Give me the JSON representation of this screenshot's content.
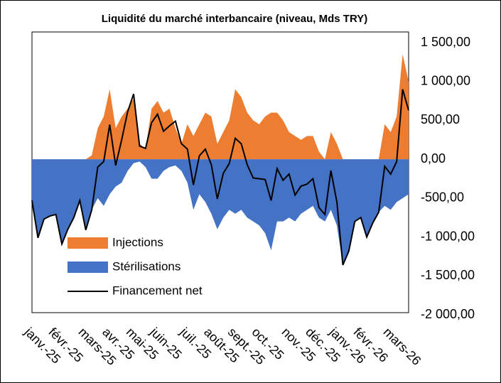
{
  "chart_data": {
    "type": "area",
    "title": "Liquidité du marché interbancaire (niveau, Mds TRY)",
    "categories": [
      "janv.-25",
      null,
      null,
      null,
      "févr.-25",
      null,
      null,
      null,
      null,
      "mars-25",
      null,
      null,
      null,
      "avr.-25",
      null,
      null,
      null,
      "mai-25",
      null,
      null,
      null,
      "juin-25",
      null,
      null,
      null,
      null,
      "juil.-25",
      null,
      null,
      null,
      "août-25",
      null,
      null,
      null,
      "sept.-25",
      null,
      null,
      null,
      "oct.-25",
      null,
      null,
      null,
      null,
      "nov.-25",
      null,
      null,
      null,
      "déc.-25",
      null,
      null,
      null,
      "janv.-26",
      null,
      null,
      null,
      "févr.-26",
      null,
      null,
      null,
      null,
      "mars-26",
      null,
      null,
      null
    ],
    "series": [
      {
        "name": "Injections",
        "type": "area",
        "color": "#ed7d31",
        "values": [
          0,
          0,
          0,
          0,
          0,
          0,
          0,
          0,
          0,
          0,
          50,
          400,
          550,
          900,
          400,
          550,
          650,
          780,
          200,
          130,
          650,
          750,
          600,
          650,
          400,
          200,
          450,
          300,
          450,
          600,
          550,
          200,
          350,
          500,
          900,
          800,
          600,
          500,
          450,
          550,
          600,
          600,
          500,
          350,
          300,
          250,
          300,
          300,
          100,
          0,
          350,
          200,
          0,
          0,
          0,
          0,
          0,
          0,
          0,
          450,
          350,
          550,
          1350,
          1000
        ]
      },
      {
        "name": "Stérilisations",
        "type": "area",
        "color": "#4472c4",
        "values": [
          -530,
          -1010,
          -770,
          -730,
          -710,
          -1090,
          -900,
          -750,
          -530,
          -910,
          -650,
          -500,
          -600,
          -450,
          -350,
          -300,
          -150,
          -50,
          -30,
          -100,
          -250,
          -250,
          -150,
          -100,
          -80,
          -150,
          -300,
          -650,
          -450,
          -550,
          -700,
          -900,
          -750,
          -650,
          -700,
          -650,
          -750,
          -800,
          -850,
          -950,
          -1170,
          -800,
          -800,
          -750,
          -800,
          -700,
          -650,
          -600,
          -750,
          -800,
          -650,
          -850,
          -1360,
          -1200,
          -800,
          -750,
          -1000,
          -820,
          -680,
          -600,
          -650,
          -550,
          -500,
          -450
        ]
      },
      {
        "name": "Financement net",
        "type": "line",
        "color": "#000000",
        "values": [
          -530,
          -1010,
          -770,
          -730,
          -710,
          -1090,
          -900,
          -750,
          -530,
          -910,
          -650,
          -100,
          -30,
          445,
          -80,
          250,
          610,
          840,
          170,
          140,
          470,
          580,
          360,
          430,
          490,
          200,
          130,
          -330,
          45,
          130,
          -70,
          -510,
          -180,
          -55,
          270,
          200,
          -70,
          -240,
          -250,
          -260,
          -530,
          -120,
          -270,
          -190,
          -460,
          -345,
          -320,
          -250,
          -620,
          -710,
          -145,
          -550,
          -1360,
          -1180,
          -800,
          -750,
          -1000,
          -820,
          -680,
          -90,
          -190,
          -30,
          900,
          630
        ]
      }
    ],
    "ylim": [
      -2000,
      1500
    ],
    "yticks": [
      {
        "value": -2000,
        "label": "-2 000,00"
      },
      {
        "value": -1500,
        "label": "-1 500,00"
      },
      {
        "value": -1000,
        "label": "-1 000,00"
      },
      {
        "value": -500,
        "label": "-500,00"
      },
      {
        "value": 0,
        "label": "0,00"
      },
      {
        "value": 500,
        "label": "500,00"
      },
      {
        "value": 1000,
        "label": "1 000,00"
      },
      {
        "value": 1500,
        "label": "1 500,00"
      }
    ],
    "legend": "lower left"
  }
}
